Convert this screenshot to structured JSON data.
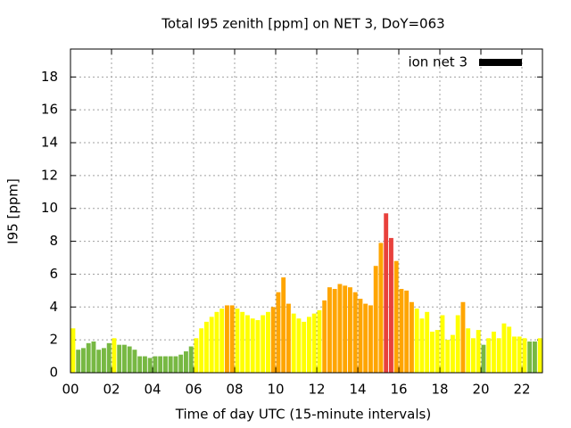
{
  "chart_data": {
    "type": "bar",
    "title": "Total I95 zenith [ppm] on NET 3, DoY=063",
    "x_label": "Time of day UTC (15-minute intervals)",
    "y_label": "I95 [ppm]",
    "xlim": [
      0,
      23
    ],
    "ylim": [
      0,
      19.7
    ],
    "xticks": [
      {
        "value": 0,
        "label": "00"
      },
      {
        "value": 2,
        "label": "02"
      },
      {
        "value": 4,
        "label": "04"
      },
      {
        "value": 6,
        "label": "06"
      },
      {
        "value": 8,
        "label": "08"
      },
      {
        "value": 10,
        "label": "10"
      },
      {
        "value": 12,
        "label": "12"
      },
      {
        "value": 14,
        "label": "14"
      },
      {
        "value": 16,
        "label": "16"
      },
      {
        "value": 18,
        "label": "18"
      },
      {
        "value": 20,
        "label": "20"
      },
      {
        "value": 22,
        "label": "22"
      }
    ],
    "yticks": [
      0,
      2,
      4,
      6,
      8,
      10,
      12,
      14,
      16,
      18
    ],
    "grid": true,
    "legend": "top-right",
    "x": [
      0,
      0.25,
      0.5,
      0.75,
      1,
      1.25,
      1.5,
      1.75,
      2,
      2.25,
      2.5,
      2.75,
      3,
      3.25,
      3.5,
      3.75,
      4,
      4.25,
      4.5,
      4.75,
      5,
      5.25,
      5.5,
      5.75,
      6,
      6.25,
      6.5,
      6.75,
      7,
      7.25,
      7.5,
      7.75,
      8,
      8.25,
      8.5,
      8.75,
      9,
      9.25,
      9.5,
      9.75,
      10,
      10.25,
      10.5,
      10.75,
      11,
      11.25,
      11.5,
      11.75,
      12,
      12.25,
      12.5,
      12.75,
      13,
      13.25,
      13.5,
      13.75,
      14,
      14.25,
      14.5,
      14.75,
      15,
      15.25,
      15.5,
      15.75,
      16,
      16.25,
      16.5,
      16.75,
      17,
      17.25,
      17.5,
      17.75,
      18,
      18.25,
      18.5,
      18.75,
      19,
      19.25,
      19.5,
      19.75,
      20,
      20.25,
      20.5,
      20.75,
      21,
      21.25,
      21.5,
      21.75,
      22,
      22.25,
      22.5,
      22.75
    ],
    "series": [
      {
        "name": "ion net 3",
        "color": "#000000",
        "values": [
          2.7,
          1.4,
          1.5,
          1.8,
          1.9,
          1.4,
          1.5,
          1.8,
          2.1,
          1.7,
          1.7,
          1.6,
          1.4,
          1.0,
          1.0,
          0.9,
          1.0,
          1.0,
          1.0,
          1.0,
          1.0,
          1.1,
          1.3,
          1.6,
          2.1,
          2.7,
          3.1,
          3.4,
          3.7,
          3.9,
          4.1,
          4.1,
          3.9,
          3.7,
          3.5,
          3.3,
          3.2,
          3.5,
          3.7,
          4.0,
          4.9,
          5.8,
          4.2,
          3.6,
          3.3,
          3.1,
          3.4,
          3.6,
          3.8,
          4.4,
          5.2,
          5.1,
          5.4,
          5.3,
          5.2,
          4.9,
          4.5,
          4.2,
          4.1,
          6.5,
          7.9,
          9.7,
          8.2,
          6.8,
          5.1,
          5.0,
          4.3,
          3.9,
          3.3,
          3.7,
          2.5,
          2.6,
          3.5,
          2.0,
          2.3,
          3.5,
          4.3,
          2.7,
          2.1,
          2.6,
          1.7,
          2.1,
          2.5,
          2.1,
          3.0,
          2.8,
          2.2,
          2.2,
          2.1,
          1.9,
          1.9,
          2.1
        ],
        "colors": [
          "#ffff00",
          "#77b843",
          "#77b843",
          "#77b843",
          "#77b843",
          "#77b843",
          "#77b843",
          "#77b843",
          "#ffff00",
          "#77b843",
          "#77b843",
          "#77b843",
          "#77b843",
          "#77b843",
          "#77b843",
          "#77b843",
          "#77b843",
          "#77b843",
          "#77b843",
          "#77b843",
          "#77b843",
          "#77b843",
          "#77b843",
          "#77b843",
          "#ffff00",
          "#ffff00",
          "#ffff00",
          "#ffff00",
          "#ffff00",
          "#ffff00",
          "#ffa500",
          "#ffa500",
          "#ffff00",
          "#ffff00",
          "#ffff00",
          "#ffff00",
          "#ffff00",
          "#ffff00",
          "#ffff00",
          "#ffa500",
          "#ffa500",
          "#ffa500",
          "#ffa500",
          "#ffff00",
          "#ffff00",
          "#ffff00",
          "#ffff00",
          "#ffff00",
          "#ffff00",
          "#ffa500",
          "#ffa500",
          "#ffa500",
          "#ffa500",
          "#ffa500",
          "#ffa500",
          "#ffa500",
          "#ffa500",
          "#ffa500",
          "#ffa500",
          "#ffa500",
          "#ffa500",
          "#e8413c",
          "#e8413c",
          "#ffa500",
          "#ffa500",
          "#ffa500",
          "#ffa500",
          "#ffff00",
          "#ffff00",
          "#ffff00",
          "#ffff00",
          "#ffff00",
          "#ffff00",
          "#ffff00",
          "#ffff00",
          "#ffff00",
          "#ffa500",
          "#ffff00",
          "#ffff00",
          "#ffff00",
          "#77b843",
          "#ffff00",
          "#ffff00",
          "#ffff00",
          "#ffff00",
          "#ffff00",
          "#ffff00",
          "#ffff00",
          "#ffff00",
          "#77b843",
          "#77b843",
          "#ffff00"
        ]
      }
    ]
  }
}
